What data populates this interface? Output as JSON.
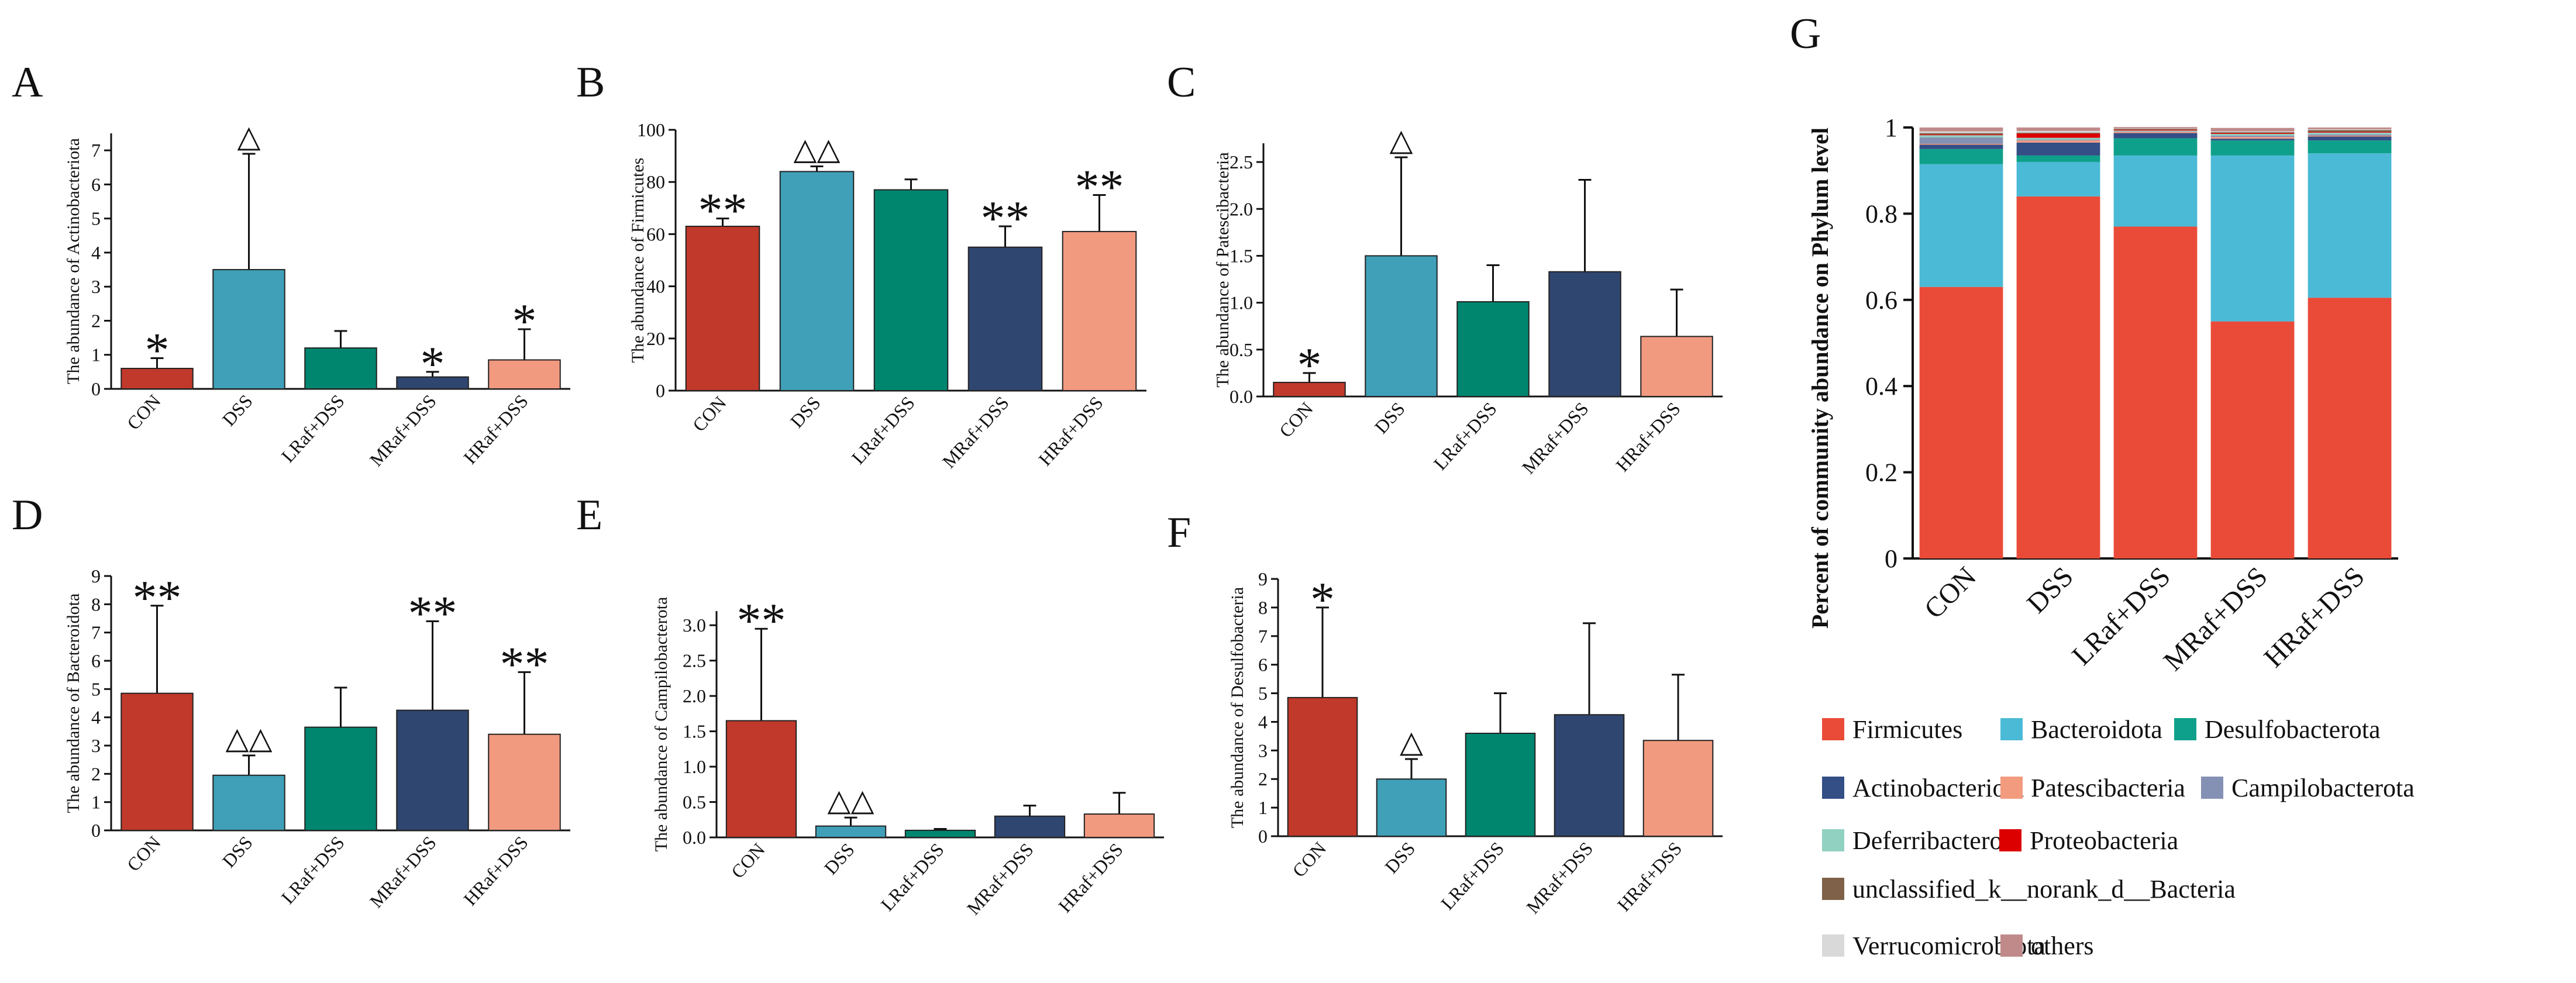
{
  "colors": {
    "CON": "#C0392B",
    "DSS": "#3FA0B8",
    "LRaf+DSS": "#00866F",
    "MRaf+DSS": "#2F4670",
    "HRaf+DSS": "#F29A80"
  },
  "chart_data": [
    {
      "panel": "A",
      "type": "bar",
      "ylabel": "The abundance of Actinobacteriota",
      "categories": [
        "CON",
        "DSS",
        "LRaf+DSS",
        "MRaf+DSS",
        "HRaf+DSS"
      ],
      "values": [
        0.6,
        3.5,
        1.2,
        0.35,
        0.85
      ],
      "errors": [
        0.3,
        3.4,
        0.5,
        0.15,
        0.9
      ],
      "yticks": [
        "0",
        "1",
        "2",
        "3",
        "4",
        "5",
        "6",
        "7"
      ],
      "ylim": [
        0,
        7.5
      ],
      "annotations": [
        "*",
        "△",
        "",
        "*",
        "*"
      ]
    },
    {
      "panel": "B",
      "type": "bar",
      "ylabel": "The abundance of Firmicutes",
      "categories": [
        "CON",
        "DSS",
        "LRaf+DSS",
        "MRaf+DSS",
        "HRaf+DSS"
      ],
      "values": [
        63,
        84,
        77,
        55,
        61
      ],
      "errors": [
        3,
        2,
        4,
        8,
        14
      ],
      "yticks": [
        "0",
        "20",
        "40",
        "60",
        "80",
        "100"
      ],
      "ylim": [
        0,
        100
      ],
      "annotations": [
        "**",
        "△△",
        "",
        "**",
        "**"
      ]
    },
    {
      "panel": "C",
      "type": "bar",
      "ylabel": "The abundance of Patescibacteria",
      "categories": [
        "CON",
        "DSS",
        "LRaf+DSS",
        "MRaf+DSS",
        "HRaf+DSS"
      ],
      "values": [
        0.15,
        1.5,
        1.01,
        1.33,
        0.64
      ],
      "errors": [
        0.1,
        1.05,
        0.39,
        0.98,
        0.5
      ],
      "yticks": [
        "0.0",
        "0.5",
        "1.0",
        "1.5",
        "2.0",
        "2.5"
      ],
      "ylim": [
        0,
        2.7
      ],
      "annotations": [
        "*",
        "△",
        "",
        "",
        ""
      ]
    },
    {
      "panel": "D",
      "type": "bar",
      "ylabel": "The abundance of Bacteroidota",
      "categories": [
        "CON",
        "DSS",
        "LRaf+DSS",
        "MRaf+DSS",
        "HRaf+DSS"
      ],
      "values": [
        4.85,
        1.95,
        3.65,
        4.25,
        3.4
      ],
      "errors": [
        3.1,
        0.7,
        1.4,
        3.15,
        2.2
      ],
      "yticks": [
        "0",
        "1",
        "2",
        "3",
        "4",
        "5",
        "6",
        "7",
        "8",
        "9"
      ],
      "ylim": [
        0,
        9
      ],
      "annotations": [
        "**",
        "△△",
        "",
        "**",
        "**"
      ]
    },
    {
      "panel": "E",
      "type": "bar",
      "ylabel": "The abundance of Campilobacterota",
      "categories": [
        "CON",
        "DSS",
        "LRaf+DSS",
        "MRaf+DSS",
        "HRaf+DSS"
      ],
      "values": [
        1.65,
        0.16,
        0.1,
        0.3,
        0.33
      ],
      "errors": [
        1.3,
        0.12,
        0.02,
        0.15,
        0.3
      ],
      "yticks": [
        "0.0",
        "0.5",
        "1.0",
        "1.5",
        "2.0",
        "2.5",
        "3.0"
      ],
      "ylim": [
        0,
        3.2
      ],
      "annotations": [
        "**",
        "△△",
        "",
        "",
        ""
      ]
    },
    {
      "panel": "F",
      "type": "bar",
      "ylabel": "The abundance of Desulfobacteria",
      "categories": [
        "CON",
        "DSS",
        "LRaf+DSS",
        "MRaf+DSS",
        "HRaf+DSS"
      ],
      "values": [
        4.85,
        2.0,
        3.6,
        4.25,
        3.35
      ],
      "errors": [
        3.15,
        0.7,
        1.4,
        3.2,
        2.3
      ],
      "yticks": [
        "0",
        "1",
        "2",
        "3",
        "4",
        "5",
        "6",
        "7",
        "8",
        "9"
      ],
      "ylim": [
        0,
        9
      ],
      "annotations": [
        "*",
        "△",
        "",
        "",
        ""
      ]
    },
    {
      "panel": "G",
      "type": "bar",
      "stacked": true,
      "ylabel": "Percent of community abundance on Phylum level",
      "categories": [
        "CON",
        "DSS",
        "LRaf+DSS",
        "MRaf+DSS",
        "HRaf+DSS"
      ],
      "yticks": [
        "0",
        "0.2",
        "0.4",
        "0.6",
        "0.8",
        "1"
      ],
      "ylim": [
        0,
        1
      ],
      "series": [
        {
          "name": "Firmicutes",
          "color": "#EA4B39",
          "values": [
            0.63,
            0.84,
            0.77,
            0.55,
            0.605
          ]
        },
        {
          "name": "Bacteroidota",
          "color": "#4BBAD6",
          "values": [
            0.285,
            0.08,
            0.165,
            0.385,
            0.335
          ]
        },
        {
          "name": "Desulfobacterota",
          "color": "#0FA08B",
          "values": [
            0.035,
            0.015,
            0.04,
            0.035,
            0.03
          ]
        },
        {
          "name": "Actinobacteriota",
          "color": "#344E86",
          "values": [
            0.01,
            0.03,
            0.012,
            0.004,
            0.009
          ]
        },
        {
          "name": "Patescibacteria",
          "color": "#F39B7F",
          "values": [
            0.002,
            0.005,
            0.003,
            0.004,
            0.002
          ]
        },
        {
          "name": "Campilobacterota",
          "color": "#8591B4",
          "values": [
            0.015,
            0.002,
            0.001,
            0.003,
            0.003
          ]
        },
        {
          "name": "Deferribacterota",
          "color": "#91D1C2",
          "values": [
            0.005,
            0.004,
            0.002,
            0.004,
            0.004
          ]
        },
        {
          "name": "Proteobacteria",
          "color": "#DC0000",
          "values": [
            0.002,
            0.01,
            0.002,
            0.002,
            0.002
          ]
        },
        {
          "name": "unclassified_k__norank_d__Bacteria",
          "color": "#7E6148",
          "values": [
            0.003,
            0.002,
            0.002,
            0.002,
            0.004
          ]
        },
        {
          "name": "Verrucomicrobiota",
          "color": "#D9D9D9",
          "values": [
            0.004,
            0.004,
            0.001,
            0.002,
            0.002
          ]
        },
        {
          "name": "others",
          "color": "#C08A8A",
          "values": [
            0.009,
            0.008,
            0.003,
            0.008,
            0.004
          ]
        }
      ]
    }
  ]
}
